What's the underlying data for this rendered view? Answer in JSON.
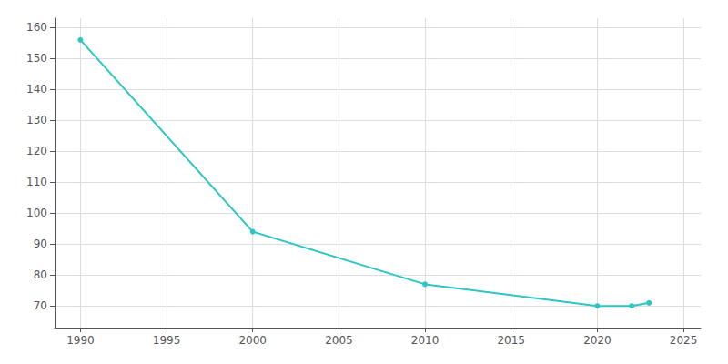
{
  "chart_data": {
    "type": "line",
    "x": [
      1990,
      2000,
      2010,
      2020,
      2022,
      2023
    ],
    "values": [
      156,
      94,
      77,
      70,
      70,
      71
    ],
    "color": "#2dc5c5",
    "marker": "circle",
    "xlim": [
      1988.5,
      2026
    ],
    "ylim": [
      63,
      163
    ],
    "xticks": [
      1990,
      1995,
      2000,
      2005,
      2010,
      2015,
      2020,
      2025
    ],
    "yticks": [
      70,
      80,
      90,
      100,
      110,
      120,
      130,
      140,
      150,
      160
    ],
    "grid": true
  }
}
